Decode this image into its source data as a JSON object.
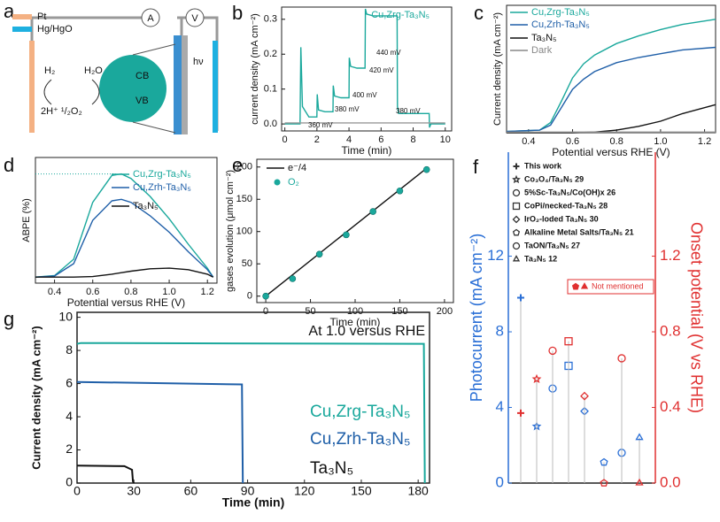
{
  "panel_a": {
    "panel": "a",
    "legend": [
      "Pt",
      "Hg/HgO"
    ],
    "meters": [
      "A",
      "V"
    ],
    "light": "hν",
    "bands": [
      "CB",
      "VB"
    ],
    "reactions": [
      "H₂",
      "H₂O",
      "2H⁺ ¹/₂O₂"
    ]
  },
  "chart_data": [
    {
      "panel": "b",
      "type": "line",
      "xlabel": "Time (min)",
      "ylabel": "current density (mA cm⁻²)",
      "xlim": [
        -0.2,
        10.4
      ],
      "xticks": [
        0,
        2,
        4,
        6,
        8,
        10
      ],
      "ylim": [
        -0.02,
        0.335
      ],
      "yticks": [
        {
          "value": 0,
          "label": "0.0"
        },
        0.1,
        0.2,
        0.3
      ],
      "annotations": [
        "360 mV",
        "380 mV",
        "400 mV",
        "420 mV",
        "440 mV",
        "380 mV"
      ],
      "series": [
        {
          "name": "Cu,Zrg-Ta₃N₅",
          "color": "#1aa89c",
          "x": [
            0,
            0.95,
            1.0,
            1.1,
            1.5,
            2.0,
            2.02,
            2.1,
            2.5,
            3.0,
            3.02,
            3.1,
            3.5,
            4.0,
            4.02,
            4.1,
            4.5,
            5.0,
            5.02,
            5.1,
            5.5,
            7.0,
            7.02,
            7.1,
            8.0,
            9.0,
            9.02,
            9.1,
            10
          ],
          "values": [
            0,
            0,
            0.22,
            0.05,
            0.02,
            0.02,
            0.085,
            0.04,
            0.035,
            0.035,
            0.11,
            0.08,
            0.075,
            0.075,
            0.19,
            0.165,
            0.16,
            0.16,
            0.33,
            0.315,
            0.31,
            0.31,
            0.05,
            0.03,
            0.03,
            0.03,
            -0.01,
            0,
            0
          ]
        },
        {
          "color": "#999999",
          "x": [
            0,
            10
          ],
          "values": [
            0.003,
            0.003
          ]
        }
      ]
    },
    {
      "panel": "c",
      "type": "line",
      "xlabel": "Potential versus RHE (V)",
      "ylabel": "Current density (mA cm⁻²)",
      "xlim": [
        0.3,
        1.25
      ],
      "xticks": [
        0.4,
        0.6,
        0.8,
        {
          "value": 1.0,
          "label": "1.0"
        },
        1.2
      ],
      "ylim": [
        0,
        10
      ],
      "series": [
        {
          "name": "Cu,Zrg-Ta₃N₅",
          "color": "#1aa89c",
          "x": [
            0.3,
            0.45,
            0.5,
            0.55,
            0.6,
            0.65,
            0.7,
            0.8,
            0.9,
            1.0,
            1.1,
            1.25
          ],
          "values": [
            0.1,
            0.2,
            0.8,
            2.5,
            4.3,
            5.4,
            6.1,
            7.0,
            7.6,
            8.1,
            8.5,
            8.9
          ]
        },
        {
          "name": "Cu,Zrh-Ta₃N₅",
          "color": "#1f5fa8",
          "x": [
            0.3,
            0.45,
            0.5,
            0.55,
            0.6,
            0.65,
            0.7,
            0.8,
            0.9,
            1.0,
            1.1,
            1.25
          ],
          "values": [
            0.1,
            0.2,
            0.6,
            2.0,
            3.4,
            4.2,
            4.8,
            5.5,
            5.9,
            6.2,
            6.5,
            6.7
          ]
        },
        {
          "name": "Ta₃N₅",
          "color": "#111111",
          "x": [
            0.3,
            0.45,
            0.5,
            0.55,
            0.6,
            0.65,
            0.7,
            0.8,
            0.9,
            1.0,
            1.1,
            1.25
          ],
          "values": [
            0,
            0,
            0,
            0,
            0,
            0.02,
            0.05,
            0.2,
            0.5,
            0.9,
            1.5,
            2.2
          ]
        },
        {
          "name": "Dark",
          "color": "#888888",
          "x": [
            0.3,
            1.25
          ],
          "values": [
            0.05,
            0.05
          ]
        }
      ]
    },
    {
      "panel": "d",
      "type": "line",
      "xlabel": "Potential versus RHE (V)",
      "ylabel": "ABPE (%)",
      "xlim": [
        0.3,
        1.25
      ],
      "xticks": [
        0.4,
        0.6,
        0.8,
        {
          "value": 1.0,
          "label": "1.0"
        },
        1.2
      ],
      "ylim": [
        -0.2,
        4
      ],
      "hline": 3.45,
      "series": [
        {
          "name": "Cu,Zrg-Ta₃N₅",
          "color": "#1aa89c",
          "x": [
            0.3,
            0.4,
            0.5,
            0.6,
            0.7,
            0.75,
            0.8,
            0.9,
            1.0,
            1.1,
            1.2,
            1.23
          ],
          "values": [
            0,
            0.05,
            0.6,
            2.5,
            3.4,
            3.45,
            3.3,
            2.7,
            1.95,
            1.1,
            0.3,
            0
          ]
        },
        {
          "name": "Cu,Zrh-Ta₃N₅",
          "color": "#1f5fa8",
          "x": [
            0.3,
            0.4,
            0.5,
            0.6,
            0.7,
            0.75,
            0.8,
            0.9,
            1.0,
            1.1,
            1.2,
            1.23
          ],
          "values": [
            0,
            0.04,
            0.45,
            1.9,
            2.55,
            2.6,
            2.5,
            2.05,
            1.5,
            0.85,
            0.25,
            0
          ]
        },
        {
          "name": "Ta₃N₅",
          "color": "#111111",
          "x": [
            0.3,
            0.4,
            0.5,
            0.6,
            0.7,
            0.75,
            0.8,
            0.9,
            1.0,
            1.1,
            1.2,
            1.23
          ],
          "values": [
            0,
            0,
            0,
            0.02,
            0.1,
            0.15,
            0.2,
            0.28,
            0.3,
            0.25,
            0.1,
            0
          ]
        }
      ]
    },
    {
      "panel": "e",
      "type": "scatter",
      "xlabel": "Time (min)",
      "ylabel": "gases evolution (μmol cm⁻²)",
      "xlim": [
        -10,
        210
      ],
      "xticks": [
        0,
        50,
        100,
        150,
        200
      ],
      "ylim": [
        -10,
        212
      ],
      "yticks": [
        0,
        50,
        100,
        150,
        200
      ],
      "series": [
        {
          "name": "e⁻/4",
          "color": "#111111",
          "kind": "line",
          "x": [
            0,
            180
          ],
          "values": [
            0,
            198
          ]
        },
        {
          "name": "O₂",
          "color": "#1aa89c",
          "kind": "scatter",
          "x": [
            0,
            30,
            60,
            90,
            120,
            150,
            180
          ],
          "values": [
            0,
            27,
            65,
            95,
            131,
            163,
            196
          ]
        }
      ]
    },
    {
      "panel": "f",
      "type": "lollipop",
      "ylabel": "Photocurrent (mA cm⁻²)",
      "y2label": "Onset potential (V vs RHE)",
      "ylim": [
        0,
        17.5
      ],
      "yticks": [
        0,
        4,
        8,
        12
      ],
      "y2lim": [
        0,
        1.75
      ],
      "y2ticks": [
        {
          "value": 0,
          "label": "0.0"
        },
        0.4,
        0.8,
        1.2
      ],
      "categories": [
        "This work",
        "Co₃O₄/Ta₃N₅ 29",
        "5%Sc-Ta₃N₅/Co(OH)x 26",
        "CoPi/necked-Ta₃N₅ 28",
        "IrO₂-loded Ta₃N₅ 30",
        "Alkaline Metal Salts/Ta₃N₅ 21",
        "TaON/Ta₃N₅ 27",
        "Ta₃N₅ 12"
      ],
      "markers": [
        "plus",
        "star",
        "circle",
        "square",
        "diamond",
        "pentagon",
        "circle",
        "triangle"
      ],
      "note": "Not mentioned",
      "series": [
        {
          "color": "#2a6fd6",
          "axis": "y",
          "values": [
            9.8,
            3.0,
            5.0,
            6.2,
            3.8,
            1.1,
            1.6,
            2.4
          ]
        },
        {
          "color": "#e03030",
          "axis": "y2",
          "values": [
            0.37,
            0.55,
            0.7,
            0.75,
            0.46,
            0.0,
            0.66,
            0.0
          ]
        }
      ]
    },
    {
      "panel": "g",
      "type": "line",
      "xlabel": "Time (min)",
      "ylabel": "Current density (mA cm⁻²)",
      "annotation": "At 1.0 versus RHE",
      "xlim": [
        0,
        186
      ],
      "xticks": [
        0,
        30,
        60,
        90,
        120,
        150,
        180
      ],
      "ylim": [
        0,
        10.3
      ],
      "yticks": [
        0,
        2,
        4,
        6,
        8,
        10
      ],
      "series": [
        {
          "name": "Cu,Zrg-Ta₃N₅",
          "color": "#1aa89c",
          "x": [
            0,
            2,
            183,
            183.5
          ],
          "values": [
            8.4,
            8.45,
            8.4,
            0
          ]
        },
        {
          "name": "Cu,Zrh-Ta₃N₅",
          "color": "#1f5fa8",
          "x": [
            0,
            87,
            87.5
          ],
          "values": [
            6.1,
            5.95,
            0
          ]
        },
        {
          "name": "Ta₃N₅",
          "color": "#111111",
          "x": [
            0,
            25,
            29,
            29.5,
            30
          ],
          "values": [
            1.05,
            1.02,
            0.8,
            0.1,
            0
          ]
        }
      ]
    }
  ]
}
